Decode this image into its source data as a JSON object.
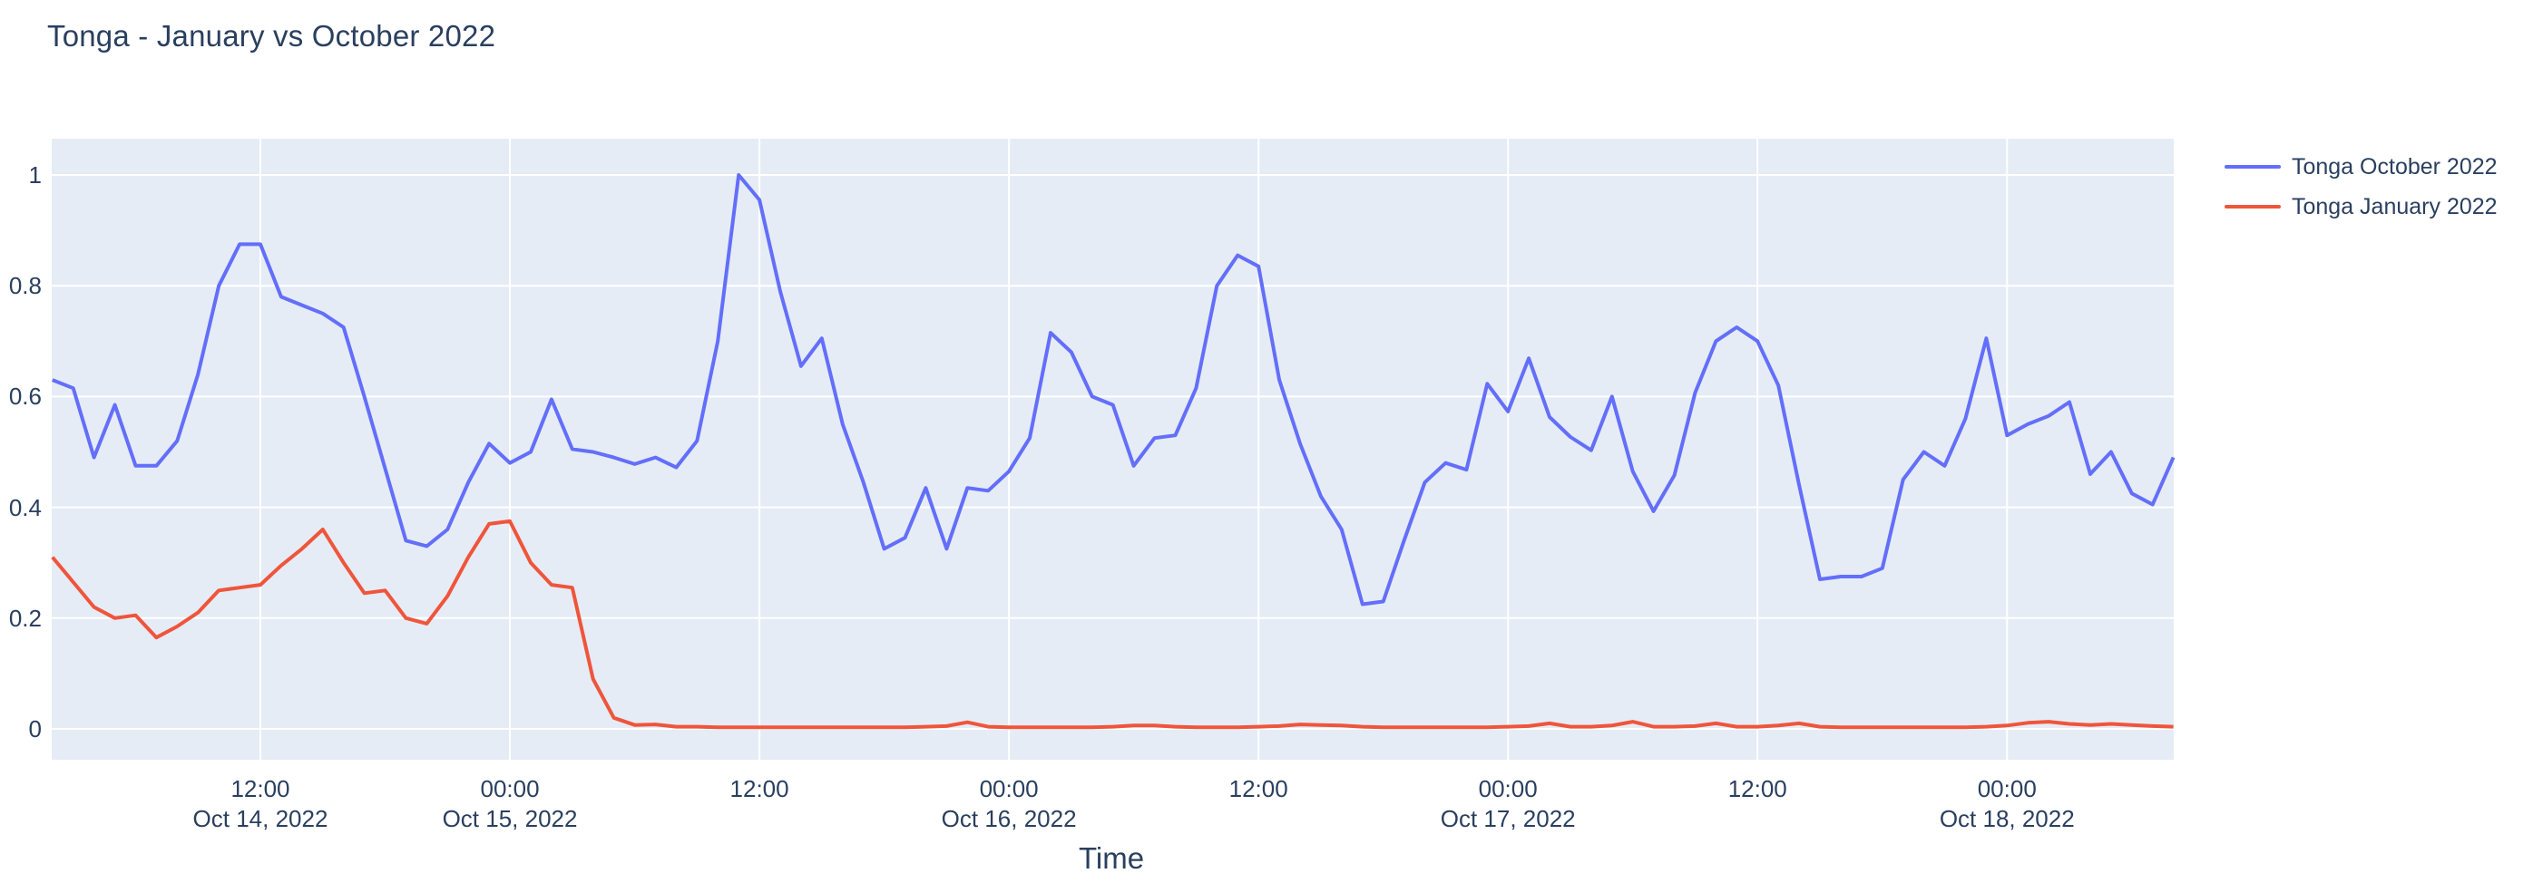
{
  "page": {
    "title": "Tonga - January vs October 2022"
  },
  "colors": {
    "page_bg": "#ffffff",
    "plot_bg": "#e5ecf6",
    "grid": "#ffffff",
    "title_text": "#2a3f5f",
    "tick_text": "#2a3f5f",
    "october_line": "#636efa",
    "january_line": "#ef553b"
  },
  "legend": {
    "items": [
      {
        "label": "Tonga October 2022",
        "color": "#636efa"
      },
      {
        "label": "Tonga January 2022",
        "color": "#ef553b"
      }
    ]
  },
  "chart_data": {
    "type": "line",
    "title": "Tonga - January vs October 2022",
    "xlabel": "Time",
    "ylabel": "",
    "x_unit": "hours since 2022-10-14 00:00",
    "xlim": [
      2,
      104
    ],
    "ylim": [
      0,
      1
    ],
    "grid": true,
    "legend_position": "top-right-outside",
    "y_ticks": [
      {
        "value": 0,
        "label": "0"
      },
      {
        "value": 0.2,
        "label": "0.2"
      },
      {
        "value": 0.4,
        "label": "0.4"
      },
      {
        "value": 0.6,
        "label": "0.6"
      },
      {
        "value": 0.8,
        "label": "0.8"
      },
      {
        "value": 1,
        "label": "1"
      }
    ],
    "x_ticks": [
      {
        "hour": 12,
        "time": "12:00",
        "date": "Oct 14, 2022"
      },
      {
        "hour": 24,
        "time": "00:00",
        "date": "Oct 15, 2022"
      },
      {
        "hour": 36,
        "time": "12:00",
        "date": ""
      },
      {
        "hour": 48,
        "time": "00:00",
        "date": "Oct 16, 2022"
      },
      {
        "hour": 60,
        "time": "12:00",
        "date": ""
      },
      {
        "hour": 72,
        "time": "00:00",
        "date": "Oct 17, 2022"
      },
      {
        "hour": 84,
        "time": "12:00",
        "date": ""
      },
      {
        "hour": 96,
        "time": "00:00",
        "date": "Oct 18, 2022"
      }
    ],
    "series": [
      {
        "name": "Tonga October 2022",
        "color": "#636efa",
        "x_hours": [
          2,
          3,
          4,
          5,
          6,
          7,
          8,
          9,
          10,
          11,
          12,
          13,
          14,
          15,
          16,
          17,
          18,
          19,
          20,
          21,
          22,
          23,
          24,
          25,
          26,
          27,
          28,
          29,
          30,
          31,
          32,
          33,
          34,
          35,
          36,
          37,
          38,
          39,
          40,
          41,
          42,
          43,
          44,
          45,
          46,
          47,
          48,
          49,
          50,
          51,
          52,
          53,
          54,
          55,
          56,
          57,
          58,
          59,
          60,
          61,
          62,
          63,
          64,
          65,
          66,
          67,
          68,
          69,
          70,
          71,
          72,
          73,
          74,
          75,
          76,
          77,
          78,
          79,
          80,
          81,
          82,
          83,
          84,
          85,
          86,
          87,
          88,
          89,
          90,
          91,
          92,
          93,
          94,
          95,
          96,
          97,
          98,
          99,
          100,
          101,
          102,
          103,
          104
        ],
        "values": [
          0.63,
          0.615,
          0.49,
          0.585,
          0.475,
          0.475,
          0.52,
          0.64,
          0.8,
          0.875,
          0.875,
          0.78,
          0.765,
          0.75,
          0.725,
          0.6,
          0.47,
          0.34,
          0.33,
          0.36,
          0.445,
          0.515,
          0.48,
          0.5,
          0.595,
          0.505,
          0.5,
          0.49,
          0.478,
          0.49,
          0.472,
          0.52,
          0.7,
          1.0,
          0.955,
          0.79,
          0.655,
          0.705,
          0.55,
          0.445,
          0.325,
          0.345,
          0.435,
          0.325,
          0.435,
          0.43,
          0.465,
          0.525,
          0.715,
          0.68,
          0.6,
          0.585,
          0.475,
          0.525,
          0.53,
          0.615,
          0.8,
          0.855,
          0.835,
          0.63,
          0.515,
          0.42,
          0.36,
          0.225,
          0.23,
          0.34,
          0.445,
          0.48,
          0.468,
          0.623,
          0.573,
          0.669,
          0.563,
          0.527,
          0.503,
          0.6,
          0.465,
          0.393,
          0.458,
          0.607,
          0.7,
          0.725,
          0.7,
          0.62,
          0.44,
          0.27,
          0.275,
          0.275,
          0.29,
          0.45,
          0.5,
          0.475,
          0.56,
          0.705,
          0.53,
          0.55,
          0.565,
          0.59,
          0.46,
          0.5,
          0.425,
          0.405,
          0.49
        ]
      },
      {
        "name": "Tonga January 2022",
        "color": "#ef553b",
        "x_hours": [
          2,
          3,
          4,
          5,
          6,
          7,
          8,
          9,
          10,
          11,
          12,
          13,
          14,
          15,
          16,
          17,
          18,
          19,
          20,
          21,
          22,
          23,
          24,
          25,
          26,
          27,
          28,
          29,
          30,
          31,
          32,
          33,
          34,
          35,
          36,
          37,
          38,
          39,
          40,
          41,
          42,
          43,
          44,
          45,
          46,
          47,
          48,
          49,
          50,
          51,
          52,
          53,
          54,
          55,
          56,
          57,
          58,
          59,
          60,
          61,
          62,
          63,
          64,
          65,
          66,
          67,
          68,
          69,
          70,
          71,
          72,
          73,
          74,
          75,
          76,
          77,
          78,
          79,
          80,
          81,
          82,
          83,
          84,
          85,
          86,
          87,
          88,
          89,
          90,
          91,
          92,
          93,
          94,
          95,
          96,
          97,
          98,
          99,
          100,
          101,
          102,
          103,
          104
        ],
        "values": [
          0.31,
          0.265,
          0.22,
          0.2,
          0.205,
          0.165,
          0.185,
          0.21,
          0.25,
          0.255,
          0.26,
          0.295,
          0.325,
          0.36,
          0.3,
          0.245,
          0.25,
          0.2,
          0.19,
          0.24,
          0.31,
          0.37,
          0.375,
          0.3,
          0.26,
          0.255,
          0.09,
          0.02,
          0.007,
          0.008,
          0.004,
          0.004,
          0.003,
          0.003,
          0.003,
          0.003,
          0.003,
          0.003,
          0.003,
          0.003,
          0.003,
          0.003,
          0.004,
          0.005,
          0.012,
          0.004,
          0.003,
          0.003,
          0.003,
          0.003,
          0.003,
          0.004,
          0.006,
          0.006,
          0.004,
          0.003,
          0.003,
          0.003,
          0.004,
          0.005,
          0.008,
          0.007,
          0.006,
          0.004,
          0.003,
          0.003,
          0.003,
          0.003,
          0.003,
          0.003,
          0.004,
          0.005,
          0.01,
          0.004,
          0.004,
          0.006,
          0.013,
          0.004,
          0.004,
          0.005,
          0.01,
          0.004,
          0.004,
          0.006,
          0.01,
          0.004,
          0.003,
          0.003,
          0.003,
          0.003,
          0.003,
          0.003,
          0.003,
          0.004,
          0.006,
          0.011,
          0.013,
          0.009,
          0.007,
          0.009,
          0.007,
          0.005,
          0.004
        ]
      }
    ]
  }
}
